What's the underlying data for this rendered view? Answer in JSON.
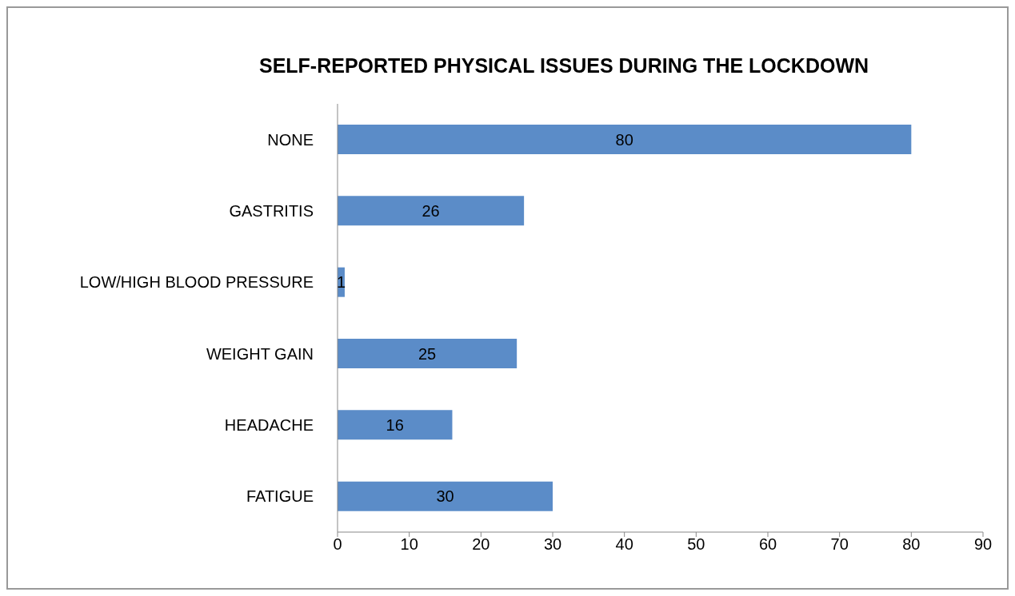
{
  "chart_data": {
    "type": "bar",
    "orientation": "horizontal",
    "title": "SELF-REPORTED PHYSICAL ISSUES DURING THE LOCKDOWN",
    "categories": [
      "NONE",
      "GASTRITIS",
      "LOW/HIGH BLOOD PRESSURE",
      "WEIGHT GAIN",
      "HEADACHE",
      "FATIGUE"
    ],
    "values": [
      80,
      26,
      1,
      25,
      16,
      30
    ],
    "color": "#5b8cc8",
    "xlim": [
      0,
      90
    ],
    "xticks": [
      0,
      10,
      20,
      30,
      40,
      50,
      60,
      70,
      80,
      90
    ],
    "data_labels": true,
    "grid": false,
    "legend": false
  }
}
